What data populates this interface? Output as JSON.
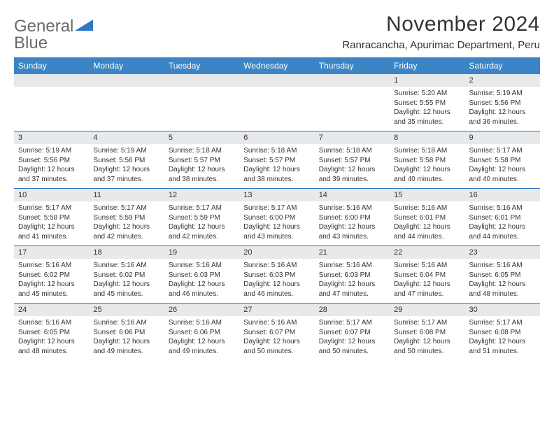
{
  "logo": {
    "text_gray": "General",
    "text_blue": "Blue",
    "shape_color": "#2f78c4",
    "gray_color": "#6a6a6a"
  },
  "header": {
    "month_title": "November 2024",
    "location": "Ranracancha, Apurimac Department, Peru"
  },
  "colors": {
    "header_bg": "#3b85c6",
    "daynum_bg": "#e7e9eb",
    "border": "#2f78c4",
    "text": "#333333"
  },
  "day_names": [
    "Sunday",
    "Monday",
    "Tuesday",
    "Wednesday",
    "Thursday",
    "Friday",
    "Saturday"
  ],
  "weeks": [
    [
      {
        "num": "",
        "sunrise": "",
        "sunset": "",
        "daylight": ""
      },
      {
        "num": "",
        "sunrise": "",
        "sunset": "",
        "daylight": ""
      },
      {
        "num": "",
        "sunrise": "",
        "sunset": "",
        "daylight": ""
      },
      {
        "num": "",
        "sunrise": "",
        "sunset": "",
        "daylight": ""
      },
      {
        "num": "",
        "sunrise": "",
        "sunset": "",
        "daylight": ""
      },
      {
        "num": "1",
        "sunrise": "Sunrise: 5:20 AM",
        "sunset": "Sunset: 5:55 PM",
        "daylight": "Daylight: 12 hours and 35 minutes."
      },
      {
        "num": "2",
        "sunrise": "Sunrise: 5:19 AM",
        "sunset": "Sunset: 5:56 PM",
        "daylight": "Daylight: 12 hours and 36 minutes."
      }
    ],
    [
      {
        "num": "3",
        "sunrise": "Sunrise: 5:19 AM",
        "sunset": "Sunset: 5:56 PM",
        "daylight": "Daylight: 12 hours and 37 minutes."
      },
      {
        "num": "4",
        "sunrise": "Sunrise: 5:19 AM",
        "sunset": "Sunset: 5:56 PM",
        "daylight": "Daylight: 12 hours and 37 minutes."
      },
      {
        "num": "5",
        "sunrise": "Sunrise: 5:18 AM",
        "sunset": "Sunset: 5:57 PM",
        "daylight": "Daylight: 12 hours and 38 minutes."
      },
      {
        "num": "6",
        "sunrise": "Sunrise: 5:18 AM",
        "sunset": "Sunset: 5:57 PM",
        "daylight": "Daylight: 12 hours and 38 minutes."
      },
      {
        "num": "7",
        "sunrise": "Sunrise: 5:18 AM",
        "sunset": "Sunset: 5:57 PM",
        "daylight": "Daylight: 12 hours and 39 minutes."
      },
      {
        "num": "8",
        "sunrise": "Sunrise: 5:18 AM",
        "sunset": "Sunset: 5:58 PM",
        "daylight": "Daylight: 12 hours and 40 minutes."
      },
      {
        "num": "9",
        "sunrise": "Sunrise: 5:17 AM",
        "sunset": "Sunset: 5:58 PM",
        "daylight": "Daylight: 12 hours and 40 minutes."
      }
    ],
    [
      {
        "num": "10",
        "sunrise": "Sunrise: 5:17 AM",
        "sunset": "Sunset: 5:58 PM",
        "daylight": "Daylight: 12 hours and 41 minutes."
      },
      {
        "num": "11",
        "sunrise": "Sunrise: 5:17 AM",
        "sunset": "Sunset: 5:59 PM",
        "daylight": "Daylight: 12 hours and 42 minutes."
      },
      {
        "num": "12",
        "sunrise": "Sunrise: 5:17 AM",
        "sunset": "Sunset: 5:59 PM",
        "daylight": "Daylight: 12 hours and 42 minutes."
      },
      {
        "num": "13",
        "sunrise": "Sunrise: 5:17 AM",
        "sunset": "Sunset: 6:00 PM",
        "daylight": "Daylight: 12 hours and 43 minutes."
      },
      {
        "num": "14",
        "sunrise": "Sunrise: 5:16 AM",
        "sunset": "Sunset: 6:00 PM",
        "daylight": "Daylight: 12 hours and 43 minutes."
      },
      {
        "num": "15",
        "sunrise": "Sunrise: 5:16 AM",
        "sunset": "Sunset: 6:01 PM",
        "daylight": "Daylight: 12 hours and 44 minutes."
      },
      {
        "num": "16",
        "sunrise": "Sunrise: 5:16 AM",
        "sunset": "Sunset: 6:01 PM",
        "daylight": "Daylight: 12 hours and 44 minutes."
      }
    ],
    [
      {
        "num": "17",
        "sunrise": "Sunrise: 5:16 AM",
        "sunset": "Sunset: 6:02 PM",
        "daylight": "Daylight: 12 hours and 45 minutes."
      },
      {
        "num": "18",
        "sunrise": "Sunrise: 5:16 AM",
        "sunset": "Sunset: 6:02 PM",
        "daylight": "Daylight: 12 hours and 45 minutes."
      },
      {
        "num": "19",
        "sunrise": "Sunrise: 5:16 AM",
        "sunset": "Sunset: 6:03 PM",
        "daylight": "Daylight: 12 hours and 46 minutes."
      },
      {
        "num": "20",
        "sunrise": "Sunrise: 5:16 AM",
        "sunset": "Sunset: 6:03 PM",
        "daylight": "Daylight: 12 hours and 46 minutes."
      },
      {
        "num": "21",
        "sunrise": "Sunrise: 5:16 AM",
        "sunset": "Sunset: 6:03 PM",
        "daylight": "Daylight: 12 hours and 47 minutes."
      },
      {
        "num": "22",
        "sunrise": "Sunrise: 5:16 AM",
        "sunset": "Sunset: 6:04 PM",
        "daylight": "Daylight: 12 hours and 47 minutes."
      },
      {
        "num": "23",
        "sunrise": "Sunrise: 5:16 AM",
        "sunset": "Sunset: 6:05 PM",
        "daylight": "Daylight: 12 hours and 48 minutes."
      }
    ],
    [
      {
        "num": "24",
        "sunrise": "Sunrise: 5:16 AM",
        "sunset": "Sunset: 6:05 PM",
        "daylight": "Daylight: 12 hours and 48 minutes."
      },
      {
        "num": "25",
        "sunrise": "Sunrise: 5:16 AM",
        "sunset": "Sunset: 6:06 PM",
        "daylight": "Daylight: 12 hours and 49 minutes."
      },
      {
        "num": "26",
        "sunrise": "Sunrise: 5:16 AM",
        "sunset": "Sunset: 6:06 PM",
        "daylight": "Daylight: 12 hours and 49 minutes."
      },
      {
        "num": "27",
        "sunrise": "Sunrise: 5:16 AM",
        "sunset": "Sunset: 6:07 PM",
        "daylight": "Daylight: 12 hours and 50 minutes."
      },
      {
        "num": "28",
        "sunrise": "Sunrise: 5:17 AM",
        "sunset": "Sunset: 6:07 PM",
        "daylight": "Daylight: 12 hours and 50 minutes."
      },
      {
        "num": "29",
        "sunrise": "Sunrise: 5:17 AM",
        "sunset": "Sunset: 6:08 PM",
        "daylight": "Daylight: 12 hours and 50 minutes."
      },
      {
        "num": "30",
        "sunrise": "Sunrise: 5:17 AM",
        "sunset": "Sunset: 6:08 PM",
        "daylight": "Daylight: 12 hours and 51 minutes."
      }
    ]
  ]
}
